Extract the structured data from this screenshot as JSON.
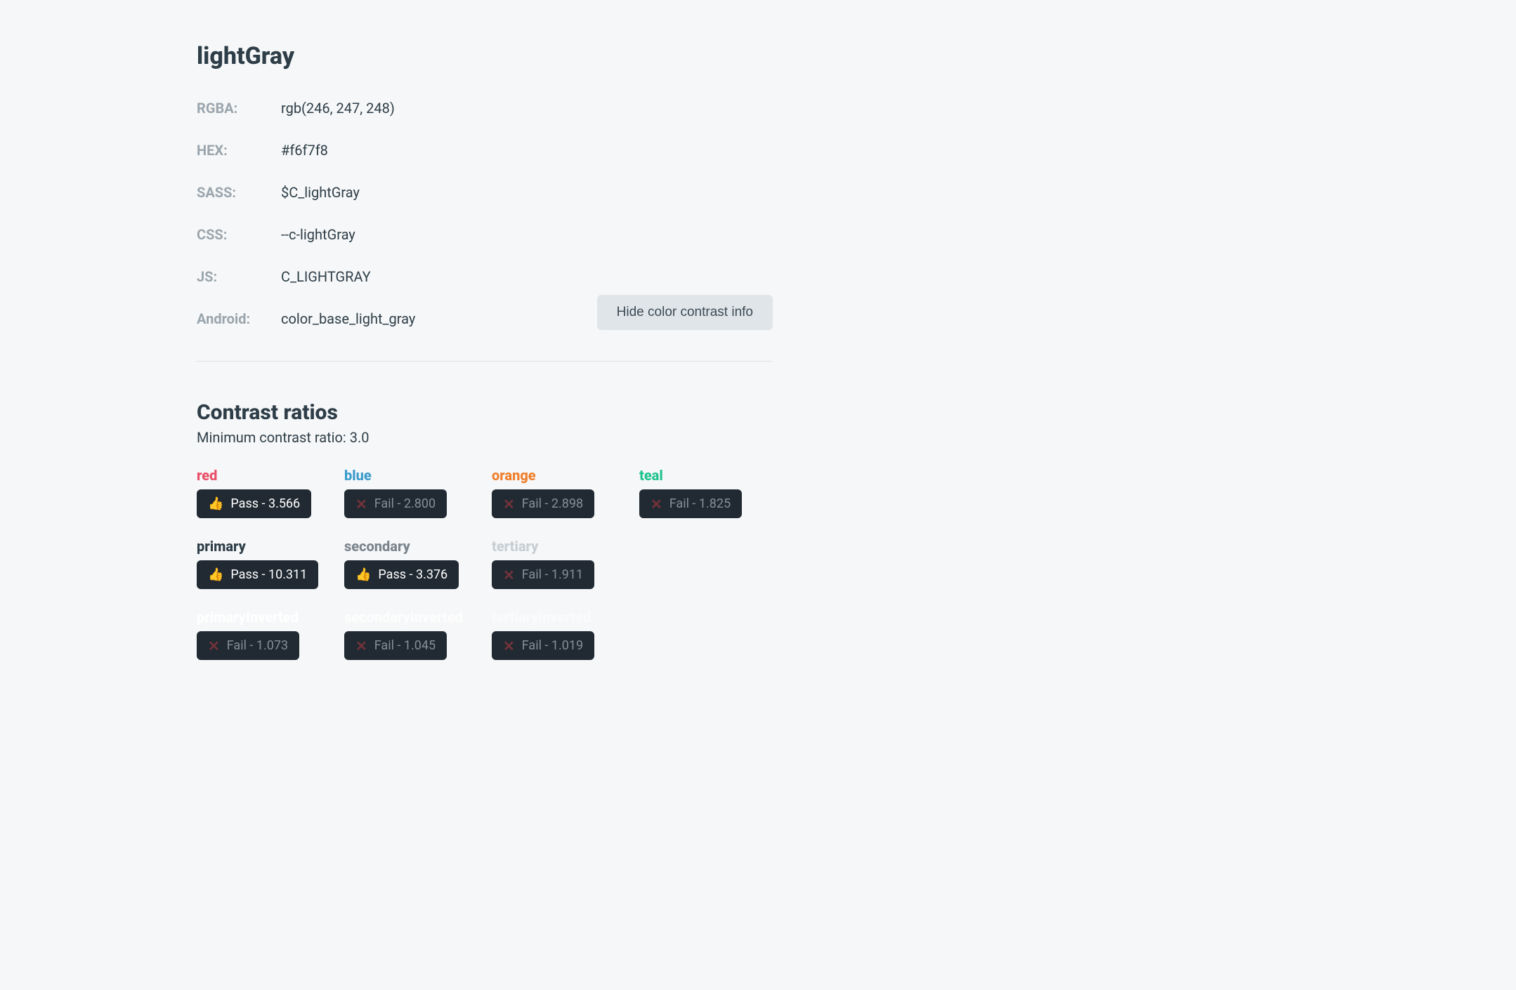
{
  "page": {
    "title": "lightGray",
    "background_color": "#f6f7f8"
  },
  "properties": [
    {
      "label": "RGBA:",
      "value": "rgb(246, 247, 248)"
    },
    {
      "label": "HEX:",
      "value": "#f6f7f8"
    },
    {
      "label": "SASS:",
      "value": "$C_lightGray"
    },
    {
      "label": "CSS:",
      "value": "--c-lightGray"
    },
    {
      "label": "JS:",
      "value": "C_LIGHTGRAY"
    },
    {
      "label": "Android:",
      "value": "color_base_light_gray"
    }
  ],
  "hide_button": {
    "label": "Hide color contrast info"
  },
  "contrast": {
    "title": "Contrast ratios",
    "subtitle": "Minimum contrast ratio: 3.0",
    "pass_icon": "👍",
    "fail_icon": "✕",
    "items": [
      {
        "name": "red",
        "name_color": "#e94e66",
        "pass": true,
        "text": "Pass - 3.566"
      },
      {
        "name": "blue",
        "name_color": "#3b9bcc",
        "pass": false,
        "text": "Fail - 2.800"
      },
      {
        "name": "orange",
        "name_color": "#ef7e2b",
        "pass": false,
        "text": "Fail - 2.898"
      },
      {
        "name": "teal",
        "name_color": "#1fc28d",
        "pass": false,
        "text": "Fail - 1.825"
      },
      {
        "name": "primary",
        "name_color": "#2e3e48",
        "pass": true,
        "text": "Pass - 10.311"
      },
      {
        "name": "secondary",
        "name_color": "#7b858d",
        "pass": true,
        "text": "Pass - 3.376"
      },
      {
        "name": "tertiary",
        "name_color": "#c7ced3",
        "pass": false,
        "text": "Fail - 1.911"
      },
      null,
      {
        "name": "primaryInverted",
        "name_color": "#ffffff",
        "pass": false,
        "text": "Fail - 1.073"
      },
      {
        "name": "secondaryInverted",
        "name_color": "#fdfdfd",
        "pass": false,
        "text": "Fail - 1.045"
      },
      {
        "name": "tertiaryInverted",
        "name_color": "#fafbfb",
        "pass": false,
        "text": "Fail - 1.019"
      }
    ]
  },
  "colors": {
    "text_primary": "#2e3e48",
    "text_muted": "#9aa5ad",
    "badge_bg": "#212a32",
    "badge_fail_text": "#858f97",
    "badge_fail_icon": "#73323a",
    "button_bg": "#e0e5e9",
    "divider": "#dfe3e6"
  }
}
